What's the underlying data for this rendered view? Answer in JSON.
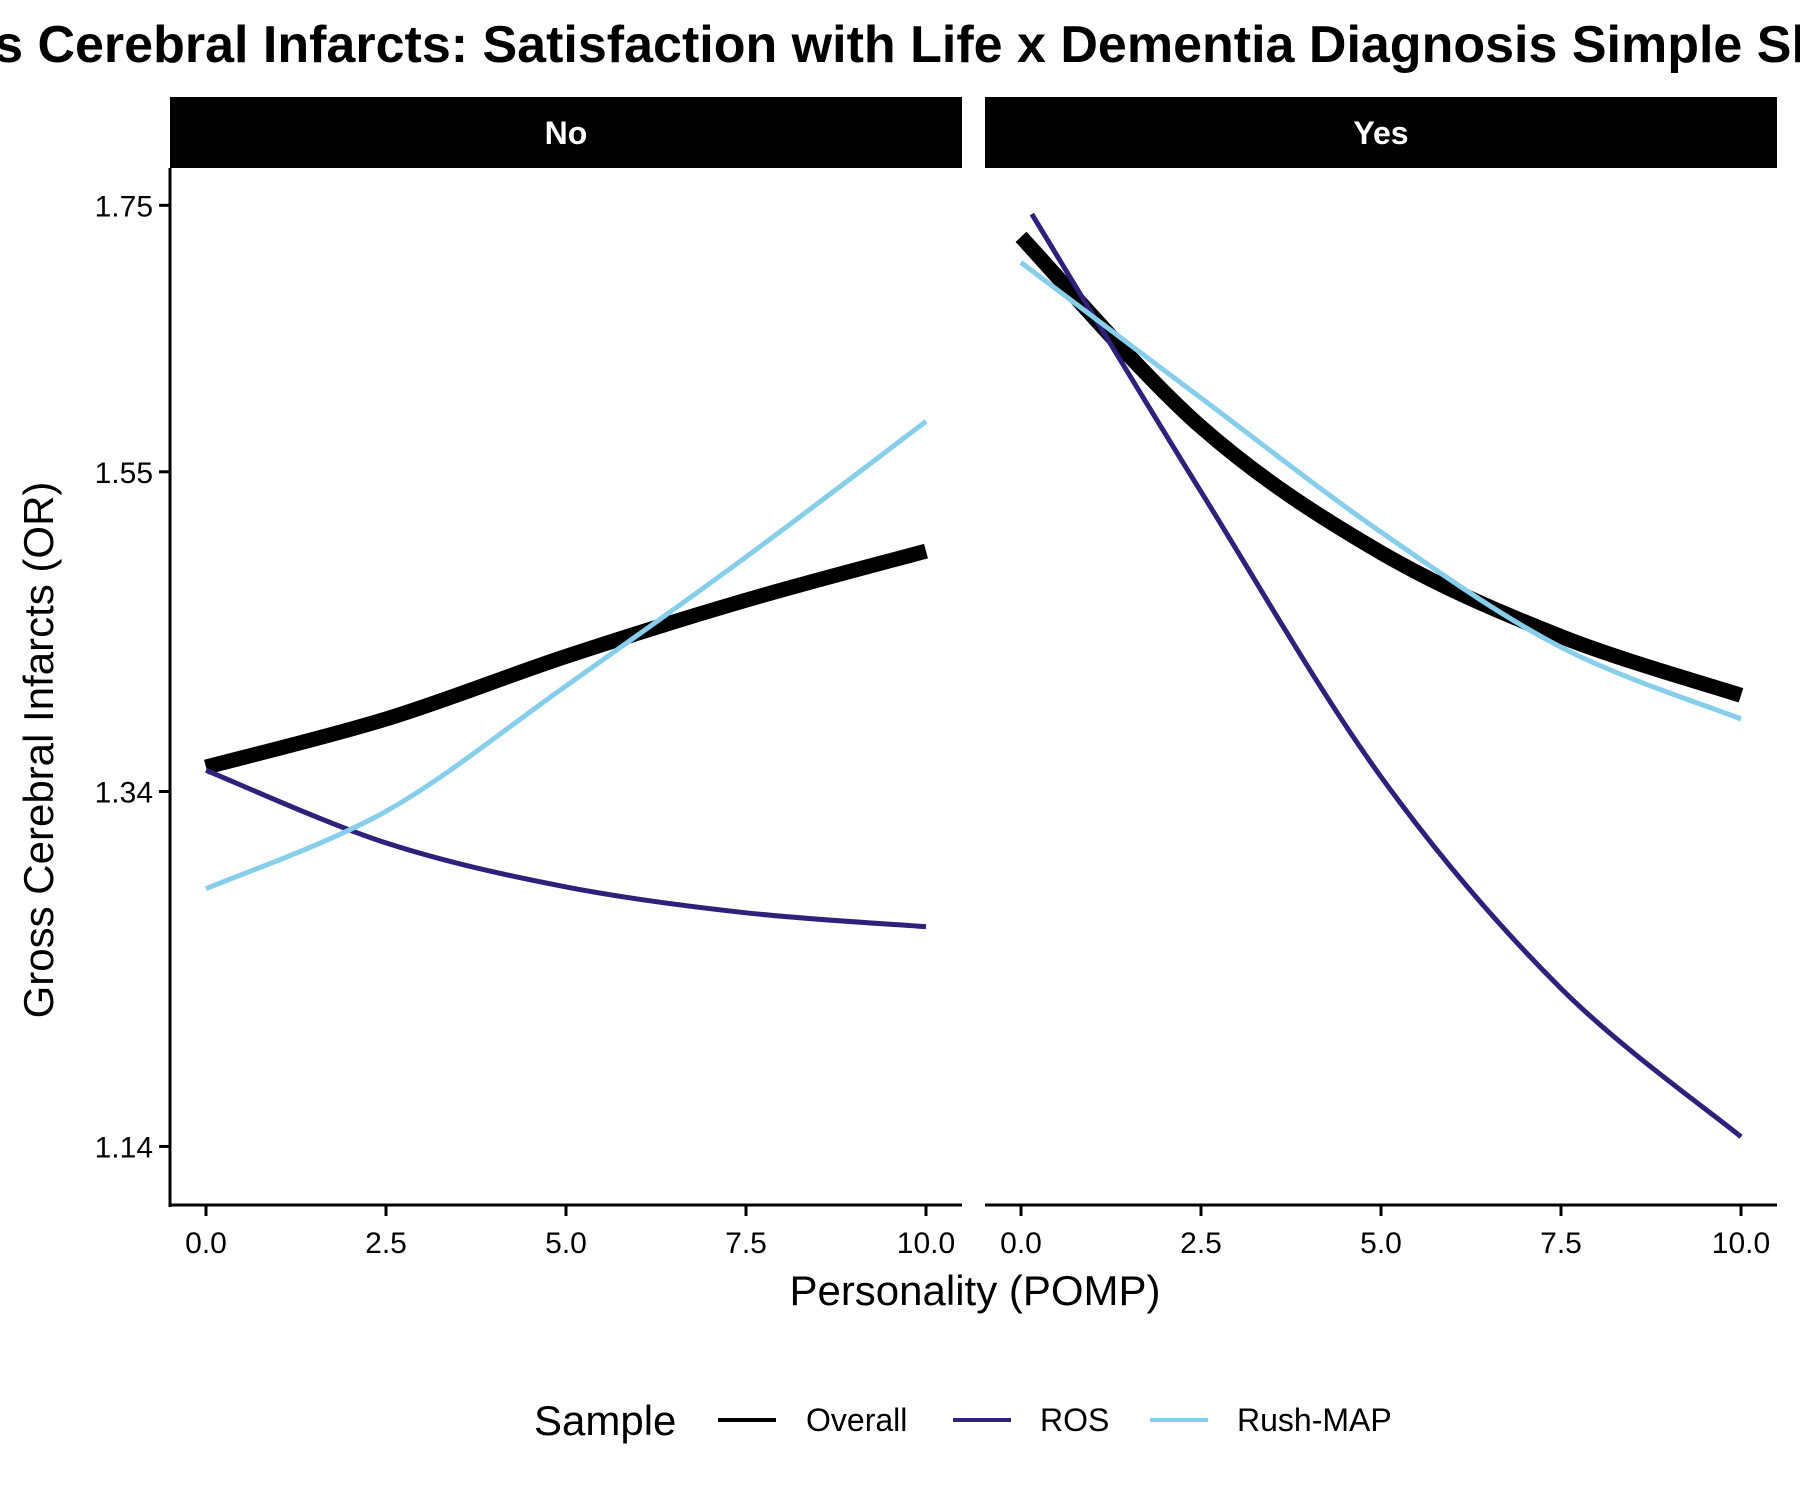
{
  "chart_data": {
    "type": "line",
    "title": "Gross Cerebral Infarcts: Satisfaction with Life x Dementia Diagnosis Simple Slopes",
    "xlabel": "Personality (POMP)",
    "ylabel": "Gross Cerebral Infarcts (OR)",
    "x_ticks": [
      "0.0",
      "2.5",
      "5.0",
      "7.5",
      "10.0"
    ],
    "y_ticks": [
      "1.14",
      "1.34",
      "1.55",
      "1.75"
    ],
    "y_scale": "log",
    "xlim": [
      -0.5,
      10.5
    ],
    "ylim": [
      1.11,
      1.78
    ],
    "grid": false,
    "legend": {
      "title": "Sample",
      "position": "bottom",
      "entries": [
        "Overall",
        "ROS",
        "Rush-MAP"
      ]
    },
    "series_styles": [
      {
        "name": "Overall",
        "color": "#000000"
      },
      {
        "name": "ROS",
        "color": "#2D2179"
      },
      {
        "name": "Rush-MAP",
        "color": "#87CEEB"
      }
    ],
    "panels": [
      {
        "label": "No",
        "series": [
          {
            "name": "Overall",
            "x": [
              0,
              2.5,
              5,
              7.5,
              10
            ],
            "y": [
              1.355,
              1.385,
              1.425,
              1.462,
              1.495
            ]
          },
          {
            "name": "ROS",
            "x": [
              0,
              2.5,
              5,
              7.5,
              10
            ],
            "y": [
              1.353,
              1.309,
              1.283,
              1.268,
              1.26
            ]
          },
          {
            "name": "Rush-MAP",
            "x": [
              0,
              2.5,
              5,
              7.5,
              10
            ],
            "y": [
              1.282,
              1.328,
              1.406,
              1.491,
              1.586
            ]
          }
        ]
      },
      {
        "label": "Yes",
        "series": [
          {
            "name": "Overall",
            "x": [
              0,
              2.5,
              5,
              7.5,
              10
            ],
            "y": [
              1.725,
              1.582,
              1.494,
              1.438,
              1.4
            ]
          },
          {
            "name": "ROS",
            "x": [
              0.15,
              2.5,
              5,
              7.5,
              10
            ],
            "y": [
              1.743,
              1.536,
              1.349,
              1.225,
              1.145
            ]
          },
          {
            "name": "Rush-MAP",
            "x": [
              0,
              2.5,
              5,
              7.5,
              10
            ],
            "y": [
              1.705,
              1.603,
              1.508,
              1.431,
              1.385
            ]
          }
        ]
      }
    ]
  }
}
